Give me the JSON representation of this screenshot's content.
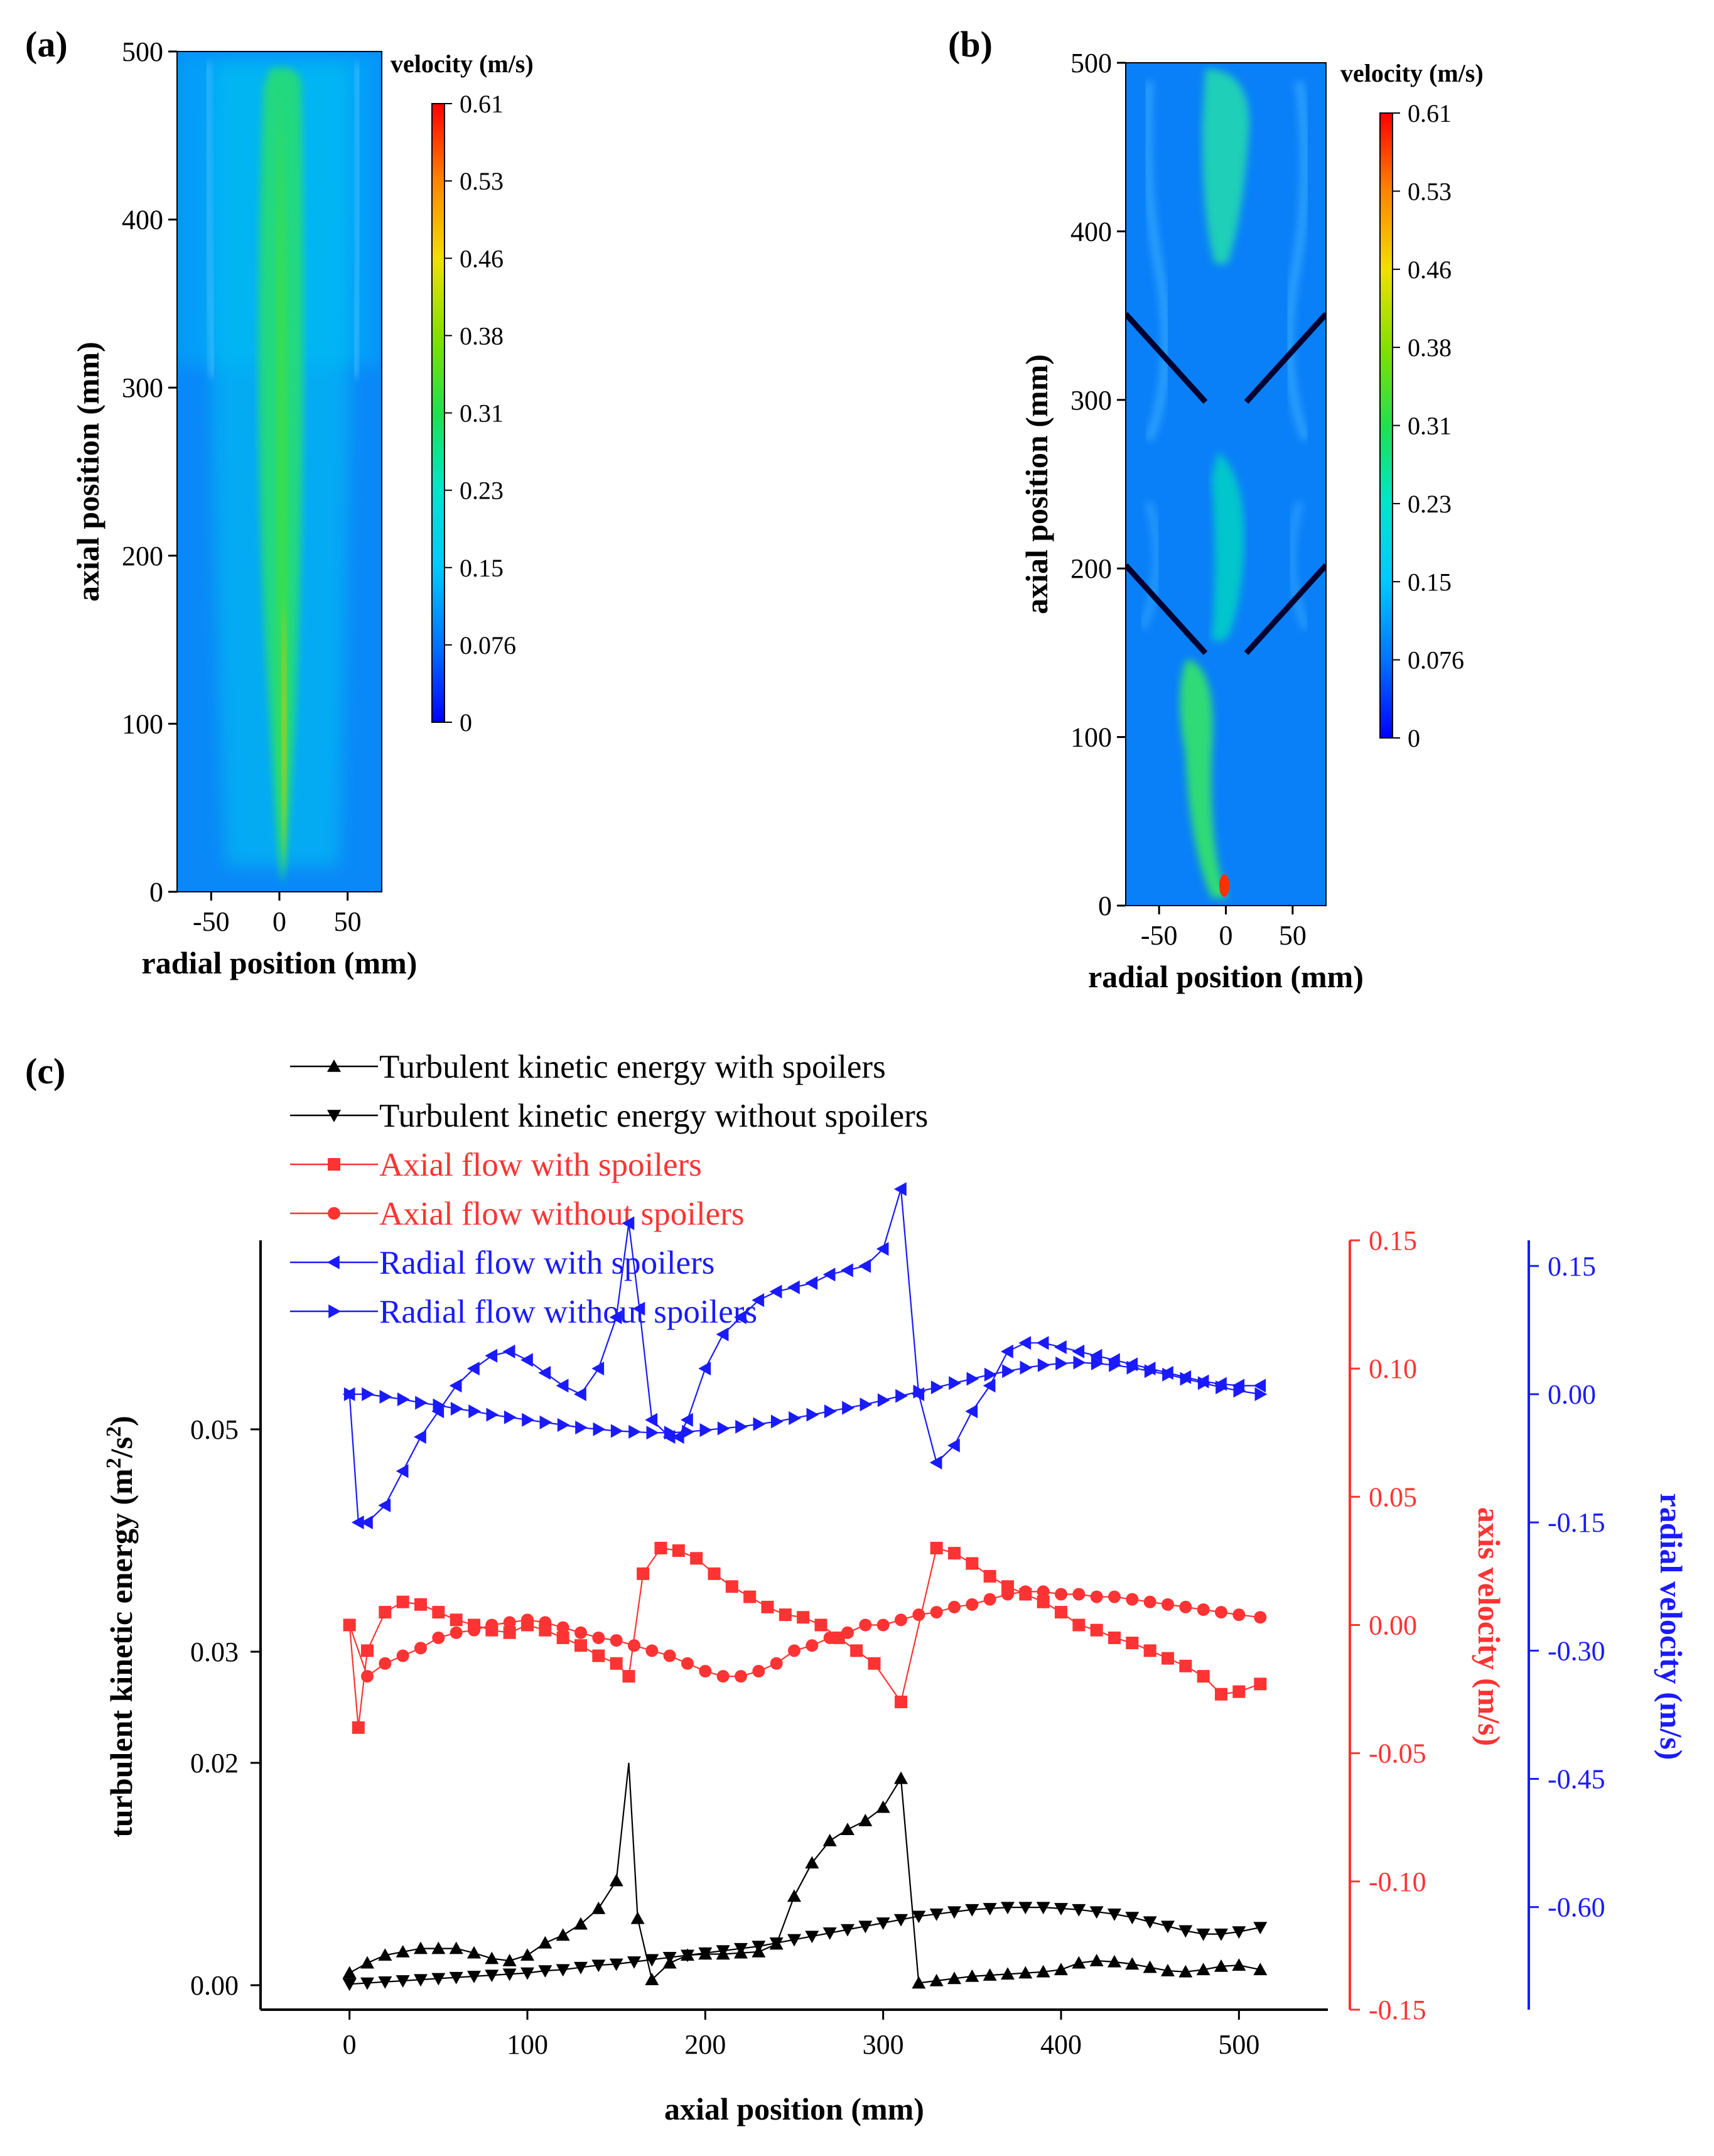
{
  "panels": {
    "a": {
      "label": "(a)"
    },
    "b": {
      "label": "(b)"
    },
    "c": {
      "label": "(c)"
    }
  },
  "contour": {
    "xlabel": "radial position (mm)",
    "ylabel": "axial position (mm)",
    "xticks": [
      "-50",
      "0",
      "50"
    ],
    "yticks": [
      "0",
      "100",
      "200",
      "300",
      "400",
      "500"
    ],
    "xlim": [
      -75,
      75
    ],
    "ylim": [
      0,
      500
    ],
    "colorbar_title": "velocity (m/s)",
    "colorbar_ticks": [
      "0.61",
      "0.53",
      "0.46",
      "0.38",
      "0.31",
      "0.23",
      "0.15",
      "0.076",
      "0"
    ],
    "colors": [
      "#0000ff",
      "#0080ff",
      "#00c0ff",
      "#00e8c0",
      "#20e050",
      "#80e000",
      "#f0e000",
      "#ff8000",
      "#ff0000"
    ]
  },
  "chart_data": {
    "type": "line",
    "xlabel": "axial position (mm)",
    "x_ticks": [
      "0",
      "100",
      "200",
      "300",
      "400",
      "500"
    ],
    "xlim": [
      -50,
      550
    ],
    "axes": {
      "tke": {
        "label": "turbulent kinetic energy (m²/s²)",
        "label_main": "turbulent kinetic energy (m",
        "label_sup1": "2",
        "label_mid": "/s",
        "label_sup2": "2",
        "label_end": ")",
        "ylim": [
          -0.0022,
          0.067
        ],
        "ticks": [
          "0.00",
          "0.02",
          "0.03",
          "0.05"
        ],
        "tick_values": [
          0.0,
          0.02,
          0.03,
          0.05
        ],
        "color": "#000000"
      },
      "axial": {
        "label": "axis velocity (m/s)",
        "ylim": [
          -0.15,
          0.15
        ],
        "ticks": [
          "0.15",
          "0.10",
          "0.05",
          "0.00",
          "-0.05",
          "-0.10",
          "-0.15"
        ],
        "tick_values": [
          0.15,
          0.1,
          0.05,
          0.0,
          -0.05,
          -0.1,
          -0.15
        ],
        "color": "#ff3333"
      },
      "radial": {
        "label": "radial velocity (m/s)",
        "ylim": [
          -0.72,
          0.18
        ],
        "ticks": [
          "0.15",
          "0.00",
          "-0.15",
          "-0.30",
          "-0.45",
          "-0.60"
        ],
        "tick_values": [
          0.15,
          0.0,
          -0.15,
          -0.3,
          -0.45,
          -0.6
        ],
        "color": "#1a1aff"
      }
    },
    "series": [
      {
        "name": "Turbulent kinetic energy with spoilers",
        "axis": "tke",
        "marker": "triangle-up",
        "color": "#000000",
        "x": [
          0,
          10,
          20,
          30,
          40,
          50,
          60,
          70,
          80,
          90,
          100,
          110,
          120,
          130,
          140,
          150,
          157,
          162,
          170,
          180,
          190,
          200,
          210,
          220,
          230,
          240,
          250,
          260,
          270,
          280,
          290,
          300,
          310,
          320,
          330,
          340,
          350,
          360,
          370,
          380,
          390,
          400,
          410,
          420,
          430,
          440,
          450,
          460,
          470,
          480,
          490,
          500,
          512
        ],
        "y": [
          0.0011,
          0.002,
          0.0027,
          0.003,
          0.0033,
          0.0033,
          0.0033,
          0.0029,
          0.0024,
          0.0022,
          0.0027,
          0.0038,
          0.0045,
          0.0055,
          0.0069,
          0.0094,
          0.02,
          0.006,
          0.0005,
          0.002,
          0.0027,
          0.0028,
          0.0028,
          0.0029,
          0.003,
          0.0037,
          0.008,
          0.011,
          0.013,
          0.014,
          0.0148,
          0.016,
          0.0186,
          0.0002,
          0.0004,
          0.0006,
          0.0008,
          0.0009,
          0.001,
          0.0011,
          0.0012,
          0.0014,
          0.002,
          0.0022,
          0.0021,
          0.0019,
          0.0016,
          0.0013,
          0.0012,
          0.0014,
          0.0017,
          0.0018,
          0.0014
        ]
      },
      {
        "name": "Turbulent kinetic energy without spoilers",
        "axis": "tke",
        "marker": "triangle-down",
        "color": "#000000",
        "x": [
          0,
          10,
          20,
          30,
          40,
          50,
          60,
          70,
          80,
          90,
          100,
          110,
          120,
          130,
          140,
          150,
          160,
          170,
          180,
          190,
          200,
          210,
          220,
          230,
          240,
          250,
          260,
          270,
          280,
          290,
          300,
          310,
          320,
          330,
          340,
          350,
          360,
          370,
          380,
          390,
          400,
          410,
          420,
          430,
          440,
          450,
          460,
          470,
          480,
          490,
          500,
          512
        ],
        "y": [
          0.0001,
          0.0002,
          0.0003,
          0.0004,
          0.0005,
          0.0006,
          0.0007,
          0.0008,
          0.0009,
          0.001,
          0.0011,
          0.0013,
          0.0014,
          0.0016,
          0.0018,
          0.0019,
          0.0021,
          0.0023,
          0.0025,
          0.0027,
          0.0029,
          0.0031,
          0.0033,
          0.0035,
          0.0038,
          0.0041,
          0.0044,
          0.0047,
          0.005,
          0.0053,
          0.0056,
          0.0059,
          0.0062,
          0.0064,
          0.0066,
          0.0068,
          0.0069,
          0.007,
          0.007,
          0.007,
          0.0069,
          0.0068,
          0.0066,
          0.0064,
          0.0061,
          0.0057,
          0.0053,
          0.0049,
          0.0046,
          0.0046,
          0.0048,
          0.0052
        ]
      },
      {
        "name": "Axial flow with spoilers",
        "axis": "axial",
        "marker": "square",
        "color": "#ff3333",
        "x": [
          0,
          5,
          10,
          20,
          30,
          40,
          50,
          60,
          70,
          80,
          90,
          100,
          110,
          120,
          130,
          140,
          150,
          157,
          165,
          175,
          185,
          195,
          205,
          215,
          225,
          235,
          245,
          255,
          265,
          275,
          285,
          295,
          310,
          330,
          340,
          350,
          360,
          370,
          380,
          390,
          400,
          410,
          420,
          430,
          440,
          450,
          460,
          470,
          480,
          490,
          500,
          512
        ],
        "y": [
          0.0,
          -0.04,
          -0.01,
          0.005,
          0.009,
          0.008,
          0.005,
          0.002,
          0.0,
          -0.002,
          -0.003,
          0.0,
          -0.002,
          -0.005,
          -0.008,
          -0.012,
          -0.015,
          -0.02,
          0.02,
          0.03,
          0.029,
          0.026,
          0.02,
          0.015,
          0.011,
          0.007,
          0.004,
          0.003,
          0.0,
          -0.005,
          -0.01,
          -0.015,
          -0.03,
          0.03,
          0.028,
          0.024,
          0.019,
          0.015,
          0.012,
          0.009,
          0.005,
          0.0,
          -0.002,
          -0.005,
          -0.007,
          -0.01,
          -0.013,
          -0.016,
          -0.02,
          -0.027,
          -0.026,
          -0.023
        ]
      },
      {
        "name": "Axial flow without spoilers",
        "axis": "axial",
        "marker": "circle",
        "color": "#ff3333",
        "x": [
          0,
          10,
          20,
          30,
          40,
          50,
          60,
          70,
          80,
          90,
          100,
          110,
          120,
          130,
          140,
          150,
          160,
          170,
          180,
          190,
          200,
          210,
          220,
          230,
          240,
          250,
          260,
          270,
          280,
          290,
          300,
          310,
          320,
          330,
          340,
          350,
          360,
          370,
          380,
          390,
          400,
          410,
          420,
          430,
          440,
          450,
          460,
          470,
          480,
          490,
          500,
          512
        ],
        "y": [
          0.0,
          -0.02,
          -0.015,
          -0.012,
          -0.009,
          -0.005,
          -0.003,
          -0.002,
          0.0,
          0.001,
          0.002,
          0.001,
          -0.001,
          -0.003,
          -0.005,
          -0.006,
          -0.008,
          -0.01,
          -0.012,
          -0.015,
          -0.018,
          -0.02,
          -0.02,
          -0.018,
          -0.015,
          -0.01,
          -0.008,
          -0.005,
          -0.003,
          0.0,
          0.0,
          0.002,
          0.004,
          0.005,
          0.007,
          0.008,
          0.01,
          0.012,
          0.013,
          0.013,
          0.012,
          0.012,
          0.011,
          0.011,
          0.01,
          0.009,
          0.008,
          0.007,
          0.006,
          0.005,
          0.004,
          0.003
        ]
      },
      {
        "name": "Radial flow with spoilers",
        "axis": "radial",
        "marker": "triangle-left",
        "color": "#1a1aff",
        "x": [
          0,
          5,
          10,
          20,
          30,
          40,
          50,
          60,
          70,
          80,
          90,
          100,
          110,
          120,
          130,
          140,
          150,
          157,
          163,
          170,
          180,
          185,
          190,
          200,
          210,
          220,
          230,
          240,
          250,
          260,
          270,
          280,
          290,
          300,
          310,
          320,
          330,
          340,
          350,
          360,
          370,
          380,
          390,
          400,
          410,
          420,
          430,
          440,
          450,
          460,
          470,
          480,
          490,
          500,
          512
        ],
        "y": [
          0.0,
          -0.15,
          -0.15,
          -0.13,
          -0.09,
          -0.05,
          -0.02,
          0.01,
          0.03,
          0.045,
          0.05,
          0.04,
          0.025,
          0.01,
          0.0,
          0.03,
          0.09,
          0.2,
          0.1,
          -0.03,
          -0.05,
          -0.05,
          -0.03,
          0.03,
          0.07,
          0.09,
          0.11,
          0.12,
          0.125,
          0.13,
          0.14,
          0.145,
          0.15,
          0.17,
          0.24,
          0.0,
          -0.08,
          -0.06,
          -0.02,
          0.01,
          0.05,
          0.06,
          0.06,
          0.055,
          0.05,
          0.045,
          0.04,
          0.035,
          0.03,
          0.025,
          0.02,
          0.015,
          0.012,
          0.01,
          0.01
        ]
      },
      {
        "name": "Radial flow without spoilers",
        "axis": "radial",
        "marker": "triangle-right",
        "color": "#1a1aff",
        "x": [
          0,
          10,
          20,
          30,
          40,
          50,
          60,
          70,
          80,
          90,
          100,
          110,
          120,
          130,
          140,
          150,
          160,
          170,
          180,
          190,
          200,
          210,
          220,
          230,
          240,
          250,
          260,
          270,
          280,
          290,
          300,
          310,
          320,
          330,
          340,
          350,
          360,
          370,
          380,
          390,
          400,
          410,
          420,
          430,
          440,
          450,
          460,
          470,
          480,
          490,
          500,
          512
        ],
        "y": [
          0.0,
          0.0,
          -0.003,
          -0.006,
          -0.01,
          -0.013,
          -0.017,
          -0.02,
          -0.024,
          -0.027,
          -0.03,
          -0.033,
          -0.036,
          -0.039,
          -0.041,
          -0.043,
          -0.044,
          -0.045,
          -0.045,
          -0.044,
          -0.042,
          -0.04,
          -0.038,
          -0.035,
          -0.032,
          -0.028,
          -0.024,
          -0.02,
          -0.016,
          -0.012,
          -0.007,
          -0.002,
          0.003,
          0.008,
          0.013,
          0.018,
          0.023,
          0.027,
          0.031,
          0.034,
          0.036,
          0.037,
          0.036,
          0.034,
          0.031,
          0.027,
          0.023,
          0.018,
          0.013,
          0.008,
          0.004,
          0.0
        ]
      }
    ]
  }
}
